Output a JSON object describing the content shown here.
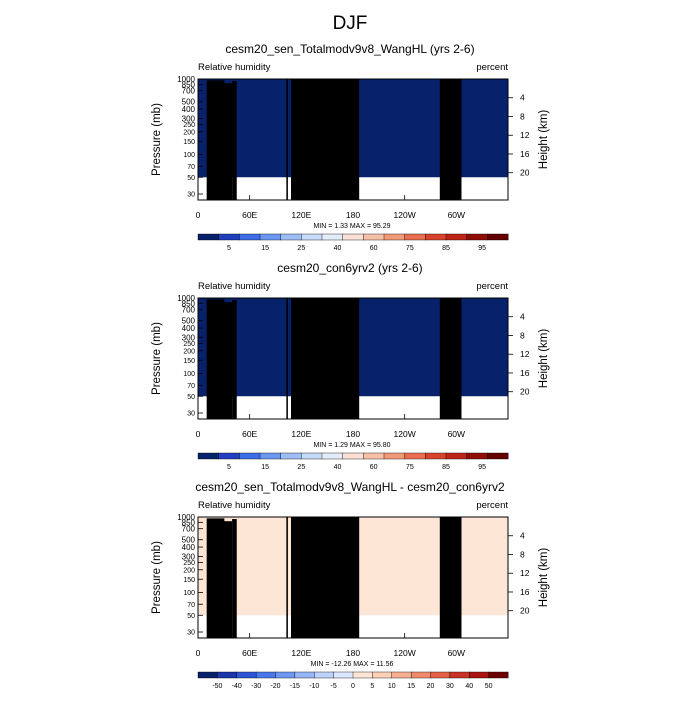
{
  "figure_title": "DJF",
  "chart_data": [
    {
      "type": "heatmap",
      "title": "cesm20_sen_Totalmodv9v8_WangHL (yrs 2-6)",
      "left_label": "Relative humidity",
      "right_label": "percent",
      "ylabel": "Pressure (mb)",
      "ylabel_right": "Height (km)",
      "x_ticks": [
        "0",
        "60E",
        "120E",
        "180",
        "120W",
        "60W"
      ],
      "y_ticks": [
        "1000",
        "850",
        "700",
        "500",
        "400",
        "300",
        "250",
        "200",
        "150",
        "100",
        "70",
        "50",
        "30"
      ],
      "height_ticks": [
        "4",
        "8",
        "12",
        "16",
        "20"
      ],
      "stats": "MIN =   1.33  MAX =  95.29",
      "min": 1.33,
      "max": 95.29,
      "colorbar_levels": [
        "5",
        "15",
        "25",
        "40",
        "60",
        "75",
        "85",
        "95"
      ],
      "kind": "abs"
    },
    {
      "type": "heatmap",
      "title": "cesm20_con6yrv2 (yrs 2-6)",
      "left_label": "Relative humidity",
      "right_label": "percent",
      "ylabel": "Pressure (mb)",
      "ylabel_right": "Height (km)",
      "x_ticks": [
        "0",
        "60E",
        "120E",
        "180",
        "120W",
        "60W"
      ],
      "y_ticks": [
        "1000",
        "850",
        "700",
        "500",
        "400",
        "300",
        "250",
        "200",
        "150",
        "100",
        "70",
        "50",
        "30"
      ],
      "height_ticks": [
        "4",
        "8",
        "12",
        "16",
        "20"
      ],
      "stats": "MIN =   1.29  MAX =  95.80",
      "min": 1.29,
      "max": 95.8,
      "colorbar_levels": [
        "5",
        "15",
        "25",
        "40",
        "60",
        "75",
        "85",
        "95"
      ],
      "kind": "abs"
    },
    {
      "type": "heatmap",
      "title": "cesm20_sen_Totalmodv9v8_WangHL - cesm20_con6yrv2",
      "left_label": "Relative humidity",
      "right_label": "percent",
      "ylabel": "Pressure (mb)",
      "ylabel_right": "Height (km)",
      "x_ticks": [
        "0",
        "60E",
        "120E",
        "180",
        "120W",
        "60W"
      ],
      "y_ticks": [
        "1000",
        "850",
        "700",
        "500",
        "400",
        "300",
        "250",
        "200",
        "150",
        "100",
        "70",
        "50",
        "30"
      ],
      "height_ticks": [
        "4",
        "8",
        "12",
        "16",
        "20"
      ],
      "stats": "MIN = -12.26  MAX =  11.56",
      "min": -12.26,
      "max": 11.56,
      "colorbar_levels": [
        "-50",
        "-40",
        "-30",
        "-20",
        "-15",
        "-10",
        "-5",
        "0",
        "5",
        "10",
        "15",
        "20",
        "30",
        "40",
        "50"
      ],
      "kind": "diff"
    }
  ],
  "colors": {
    "abs_scale": [
      "#08216b",
      "#1f3fbf",
      "#3d6ee8",
      "#6b97f2",
      "#9dbdf7",
      "#c6dafa",
      "#e4ecf8",
      "#fbe1d5",
      "#f7c0a6",
      "#f29a78",
      "#e86e4f",
      "#d8432c",
      "#bf2516",
      "#8f0c07",
      "#650000"
    ],
    "diff_scale": [
      "#08216b",
      "#1a36a8",
      "#2d55d6",
      "#4a78ea",
      "#6d98f2",
      "#96b7f7",
      "#bcd2fa",
      "#dbe7fc",
      "#fde6d6",
      "#fcd0b6",
      "#f8b093",
      "#f18a6c",
      "#e35f45",
      "#c93325",
      "#a81510",
      "#6b0000"
    ],
    "topography": "#000000"
  }
}
